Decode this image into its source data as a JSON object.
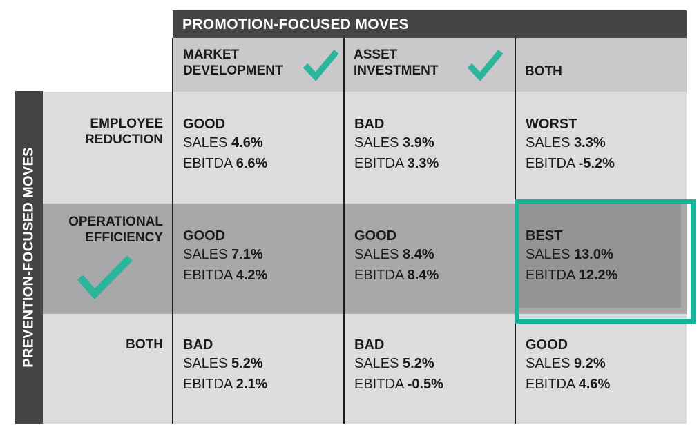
{
  "top_banner": "PROMOTION-FOCUSED MOVES",
  "side_banner": "PREVENTION-FOCUSED MOVES",
  "columns": [
    "MARKET DEVELOPMENT",
    "ASSET INVESTMENT",
    "BOTH"
  ],
  "rows": [
    "EMPLOYEE REDUCTION",
    "OPERATIONAL EFFICIENCY",
    "BOTH"
  ],
  "checkmarks": {
    "color": "#2bb59a",
    "icon": "checkmark-icon"
  },
  "highlight_color": "#19b497",
  "cells": [
    [
      {
        "verdict": "GOOD",
        "sales_label": "SALES",
        "sales": "4.6%",
        "ebitda_label": "EBITDA",
        "ebitda": "6.6%"
      },
      {
        "verdict": "BAD",
        "sales_label": "SALES",
        "sales": "3.9%",
        "ebitda_label": "EBITDA",
        "ebitda": "3.3%"
      },
      {
        "verdict": "WORST",
        "sales_label": "SALES",
        "sales": "3.3%",
        "ebitda_label": "EBITDA",
        "ebitda": "-5.2%"
      }
    ],
    [
      {
        "verdict": "GOOD",
        "sales_label": "SALES",
        "sales": "7.1%",
        "ebitda_label": "EBITDA",
        "ebitda": "4.2%"
      },
      {
        "verdict": "GOOD",
        "sales_label": "SALES",
        "sales": "8.4%",
        "ebitda_label": "EBITDA",
        "ebitda": "8.4%"
      },
      {
        "verdict": "BEST",
        "sales_label": "SALES",
        "sales": "13.0%",
        "ebitda_label": "EBITDA",
        "ebitda": "12.2%"
      }
    ],
    [
      {
        "verdict": "BAD",
        "sales_label": "SALES",
        "sales": "5.2%",
        "ebitda_label": "EBITDA",
        "ebitda": "2.1%"
      },
      {
        "verdict": "BAD",
        "sales_label": "SALES",
        "sales": "5.2%",
        "ebitda_label": "EBITDA",
        "ebitda": "-0.5%"
      },
      {
        "verdict": "GOOD",
        "sales_label": "SALES",
        "sales": "9.2%",
        "ebitda_label": "EBITDA",
        "ebitda": "4.6%"
      }
    ]
  ]
}
